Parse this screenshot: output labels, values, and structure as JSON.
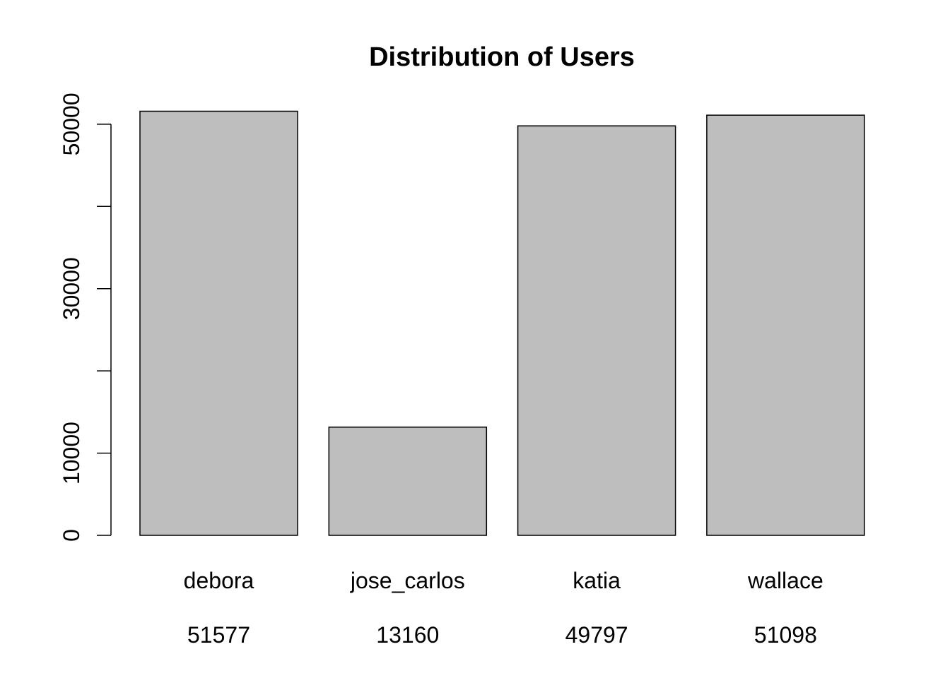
{
  "chart_data": {
    "type": "bar",
    "title": "Distribution of Users",
    "xlabel": "",
    "ylabel": "",
    "categories": [
      "debora",
      "jose_carlos",
      "katia",
      "wallace"
    ],
    "values": [
      51577,
      13160,
      49797,
      51098
    ],
    "value_labels": [
      "51577",
      "13160",
      "49797",
      "51098"
    ],
    "yticks": [
      0,
      10000,
      20000,
      30000,
      40000,
      50000
    ],
    "ytick_labels": [
      "0",
      "10000",
      "",
      "30000",
      "",
      "50000"
    ],
    "ylim": [
      0,
      51577
    ],
    "grid": false,
    "legend": "none",
    "colors": {
      "bar_fill": "#bebebe",
      "bar_stroke": "#000000",
      "axis": "#000000",
      "text": "#000000"
    }
  }
}
